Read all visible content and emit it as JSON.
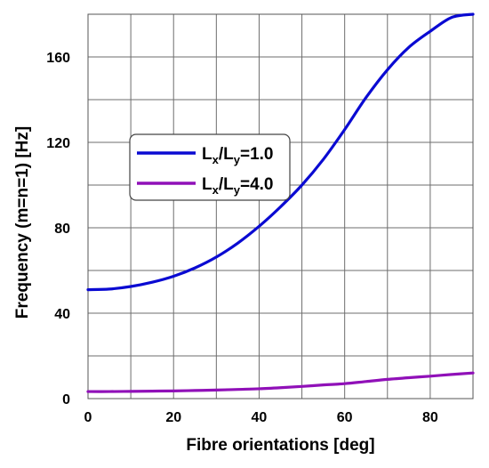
{
  "chart_data": {
    "type": "line",
    "title": "",
    "xlabel": "Fibre orientations [deg]",
    "ylabel": "Frequency (m=n=1) [Hz]",
    "xlim": [
      0,
      90
    ],
    "ylim": [
      0,
      180
    ],
    "xticks": [
      0,
      20,
      40,
      60,
      80
    ],
    "yticks": [
      0,
      40,
      80,
      120,
      160
    ],
    "grid": true,
    "legend_position": "upper-left-center",
    "x": [
      0,
      5,
      10,
      15,
      20,
      25,
      30,
      35,
      40,
      45,
      50,
      55,
      60,
      65,
      70,
      75,
      80,
      85,
      90
    ],
    "series": [
      {
        "name": "Lx/Ly=1.0",
        "legend": {
          "a": "L",
          "a_sub": "x",
          "b": "L",
          "b_sub": "y",
          "value": "=1.0"
        },
        "color": "#0a0ad2",
        "values": [
          51,
          51.3,
          52.5,
          54.5,
          57.3,
          61.2,
          66.3,
          72.8,
          80.7,
          89.8,
          100,
          112,
          126,
          141,
          154,
          164.5,
          172,
          178.5,
          180
        ]
      },
      {
        "name": "Lx/Ly=4.0",
        "legend": {
          "a": "L",
          "a_sub": "x",
          "b": "L",
          "b_sub": "y",
          "value": "=4.0"
        },
        "color": "#9010b8",
        "values": [
          3.3,
          3.3,
          3.4,
          3.5,
          3.6,
          3.8,
          4.0,
          4.3,
          4.6,
          5.1,
          5.7,
          6.4,
          7.0,
          8.0,
          9.0,
          9.8,
          10.5,
          11.3,
          12.0
        ]
      }
    ]
  }
}
